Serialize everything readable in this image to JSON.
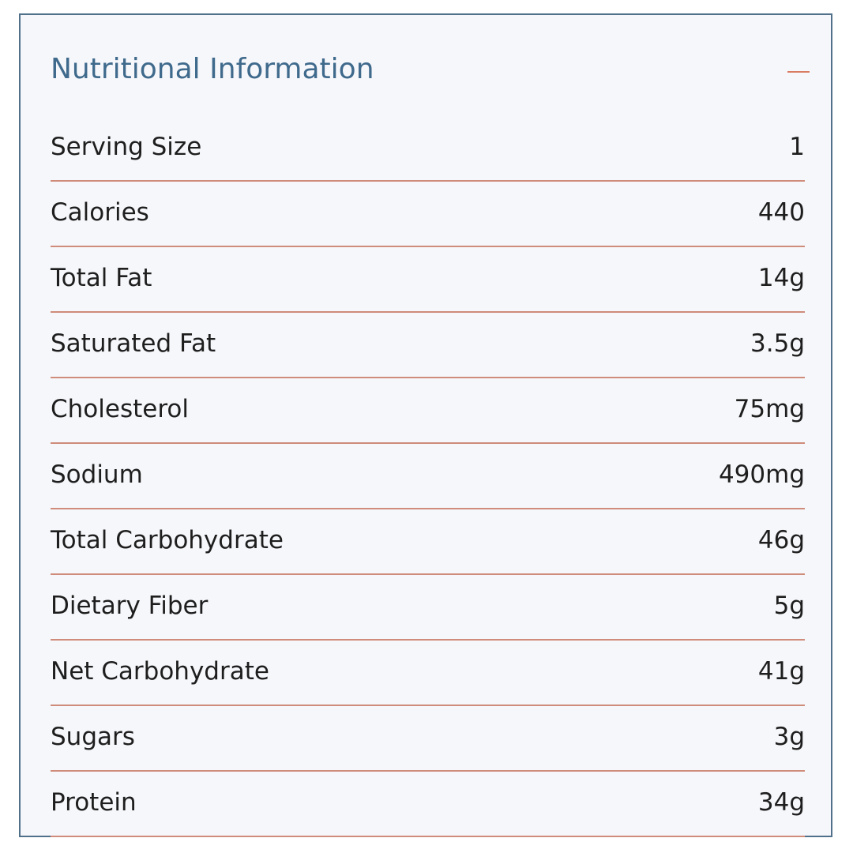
{
  "panel": {
    "title": "Nutritional Information",
    "collapse_icon": "minus-icon",
    "colors": {
      "title": "#3f6a8c",
      "divider": "#cf8c7a",
      "accent": "#d97c62",
      "border": "#51718a",
      "background": "#f6f7fb"
    }
  },
  "rows": [
    {
      "label": "Serving Size",
      "value": "1"
    },
    {
      "label": "Calories",
      "value": "440"
    },
    {
      "label": "Total Fat",
      "value": "14g"
    },
    {
      "label": "Saturated Fat",
      "value": "3.5g"
    },
    {
      "label": "Cholesterol",
      "value": "75mg"
    },
    {
      "label": "Sodium",
      "value": "490mg"
    },
    {
      "label": "Total Carbohydrate",
      "value": "46g"
    },
    {
      "label": "Dietary Fiber",
      "value": "5g"
    },
    {
      "label": "Net Carbohydrate",
      "value": "41g"
    },
    {
      "label": "Sugars",
      "value": "3g"
    },
    {
      "label": "Protein",
      "value": "34g"
    }
  ]
}
